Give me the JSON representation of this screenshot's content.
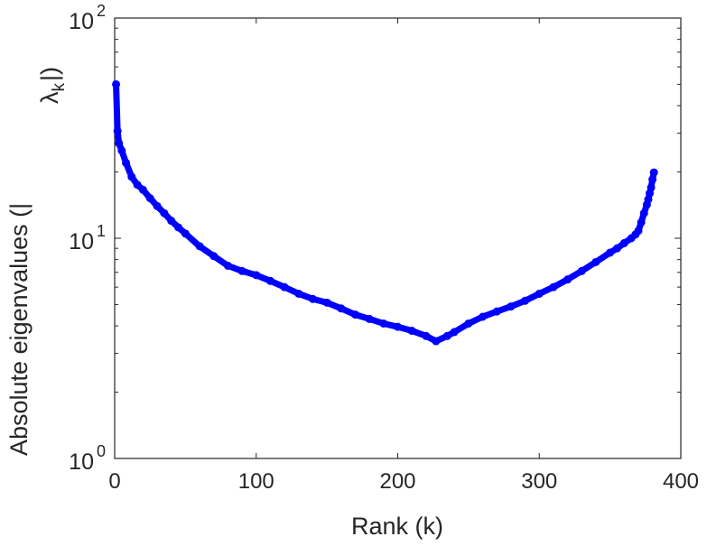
{
  "chart_data": {
    "type": "line",
    "title": "",
    "xlabel": "Rank (k)",
    "ylabel": "Absolute eigenvalues (|λ_k|)",
    "ylabel_parts": {
      "prefix": "Absolute eigenvalues (|",
      "symbol": "λ",
      "subscript": "k",
      "suffix": "|)"
    },
    "xlim": [
      0,
      400
    ],
    "ylim": [
      1,
      100
    ],
    "yscale": "log",
    "xticks": [
      0,
      100,
      200,
      300,
      400
    ],
    "xtick_labels": [
      "0",
      "100",
      "200",
      "300",
      "400"
    ],
    "yticks": [
      1,
      10,
      100
    ],
    "ytick_labels": [
      {
        "base": "10",
        "exp": "0"
      },
      {
        "base": "10",
        "exp": "1"
      },
      {
        "base": "10",
        "exp": "2"
      }
    ],
    "grid": false,
    "series": [
      {
        "name": "eigenvalues",
        "color": "#0000ff",
        "marker": "circle",
        "x": [
          1,
          2,
          3,
          5,
          8,
          12,
          16,
          20,
          25,
          30,
          35,
          40,
          45,
          50,
          60,
          70,
          80,
          90,
          100,
          110,
          120,
          130,
          140,
          150,
          160,
          170,
          180,
          190,
          200,
          210,
          220,
          227,
          235,
          240,
          250,
          260,
          270,
          280,
          290,
          300,
          310,
          320,
          330,
          340,
          350,
          355,
          360,
          365,
          368,
          370,
          372,
          374,
          376,
          377,
          378,
          379,
          380,
          381
        ],
        "values": [
          50,
          30.7,
          27,
          25,
          22,
          19,
          17.5,
          16.6,
          15.2,
          14,
          13,
          12,
          11.2,
          10.5,
          9.2,
          8.3,
          7.5,
          7.1,
          6.8,
          6.4,
          6.0,
          5.6,
          5.3,
          5.1,
          4.8,
          4.5,
          4.3,
          4.1,
          3.96,
          3.8,
          3.6,
          3.41,
          3.6,
          3.75,
          4.1,
          4.4,
          4.65,
          4.9,
          5.2,
          5.6,
          6.0,
          6.5,
          7.1,
          7.8,
          8.6,
          9.0,
          9.5,
          10,
          10.4,
          10.8,
          11.8,
          13,
          14.2,
          15,
          16,
          17,
          18.5,
          19.9
        ]
      }
    ]
  }
}
